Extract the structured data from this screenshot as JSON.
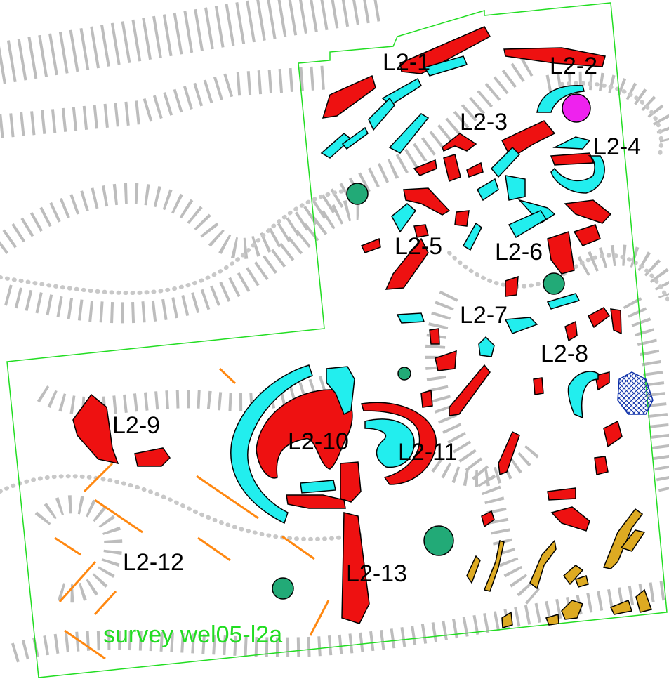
{
  "labels": [
    "L2-1",
    "L2-2",
    "L2-3",
    "L2-4",
    "L2-5",
    "L2-6",
    "L2-7",
    "L2-8",
    "L2-9",
    "L2-10",
    "L2-11",
    "L2-12",
    "L2-13"
  ],
  "caption": "survey wel05-l2a"
}
